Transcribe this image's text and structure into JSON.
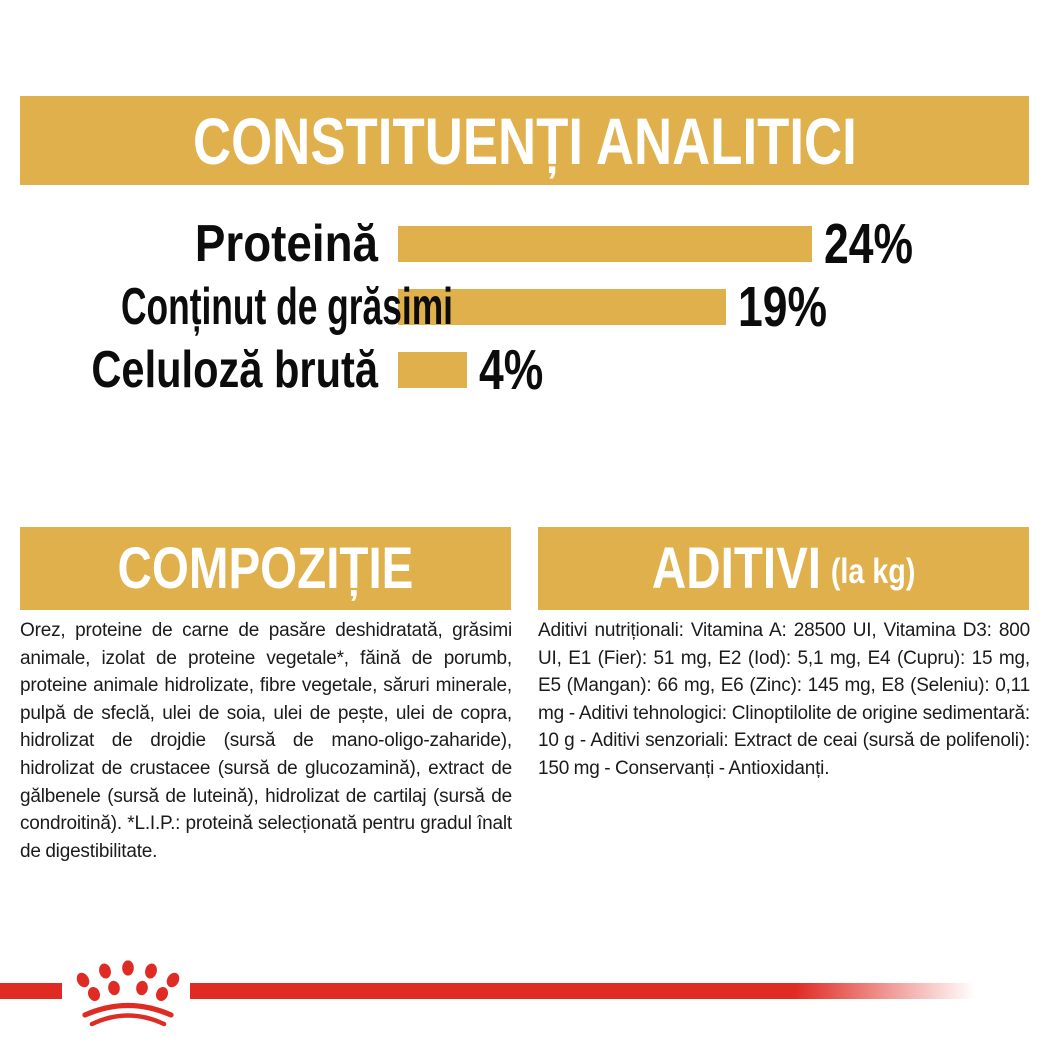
{
  "colors": {
    "gold": "#DFB04B",
    "red": "#DF2B23",
    "text": "#1b1b1b"
  },
  "analytical": {
    "title": "CONSTITUENȚI ANALITICI"
  },
  "chart_data": {
    "type": "bar",
    "orientation": "horizontal",
    "categories": [
      "Proteină",
      "Conținut de grăsimi",
      "Celuloză brută"
    ],
    "values": [
      24,
      19,
      4
    ],
    "unit": "%",
    "value_labels": [
      "24%",
      "19%",
      "4%"
    ],
    "bar_color": "#DFB04B",
    "xlim": [
      0,
      24
    ],
    "grid": false,
    "legend": false,
    "title": "CONSTITUENȚI ANALITICI"
  },
  "composition": {
    "title": "COMPOZIȚIE",
    "body": "Orez, proteine de carne de pasăre deshidratată, grăsimi animale, izolat de proteine vegetale*, făină de porumb, proteine animale hidrolizate, fibre vegetale, săruri minerale, pulpă de sfeclă, ulei de soia, ulei de pește, ulei de copra, hidrolizat de drojdie (sursă de mano-oligo-zaharide), hidrolizat de crustacee (sursă de glucozamină), extract de gălbenele (sursă de luteină), hidrolizat de cartilaj (sursă de condroitină). *L.I.P.: proteină selecționată pentru gradul înalt de digestibilitate."
  },
  "additives": {
    "title": "ADITIVI",
    "title_suffix": "(la kg)",
    "body": "Aditivi nutriționali: Vitamina A: 28500 UI, Vitamina D3: 800 UI, E1 (Fier): 51 mg, E2 (Iod): 5,1 mg, E4 (Cupru): 15 mg, E5 (Mangan): 66 mg, E6 (Zinc): 145 mg, E8 (Seleniu): 0,11 mg - Aditivi tehnologici: Clinoptilolite de origine sedimentară: 10 g - Aditivi senzoriali: Extract de ceai (sursă de polifenoli): 150 mg - Conservanți - Antioxidanți.",
    "footer_logo": "royal-canin-crown"
  }
}
